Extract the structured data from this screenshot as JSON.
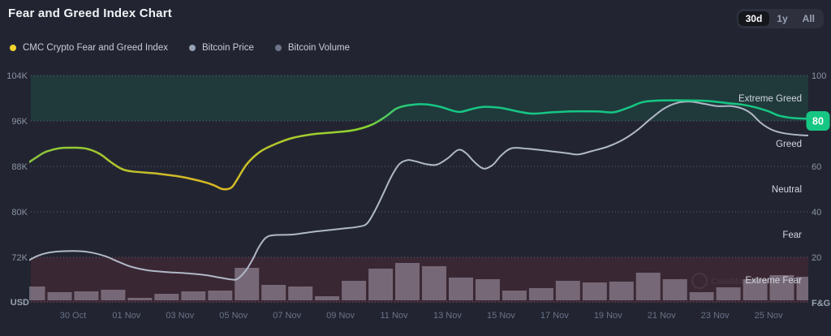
{
  "header": {
    "title": "Fear and Greed Index Chart",
    "range_buttons": [
      {
        "label": "30d",
        "active": true
      },
      {
        "label": "1y",
        "active": false
      },
      {
        "label": "All",
        "active": false
      }
    ]
  },
  "legend": [
    {
      "label": "CMC Crypto Fear and Greed Index",
      "color": "#f3d42f"
    },
    {
      "label": "Bitcoin Price",
      "color": "#98a1b3"
    },
    {
      "label": "Bitcoin Volume",
      "color": "#6e7588"
    }
  ],
  "watermark": "CoinMarketCap",
  "chart_data": {
    "type": "line",
    "title": "Fear and Greed Index Chart",
    "x_axis": {
      "tick_labels": [
        "30 Oct",
        "01 Nov",
        "03 Nov",
        "05 Nov",
        "07 Nov",
        "09 Nov",
        "11 Nov",
        "13 Nov",
        "15 Nov",
        "17 Nov",
        "19 Nov",
        "21 Nov",
        "23 Nov",
        "25 Nov"
      ],
      "tick_days": [
        2,
        4,
        6,
        8,
        10,
        12,
        14,
        16,
        18,
        20,
        22,
        24,
        26,
        28
      ],
      "day_zero": "28 Oct"
    },
    "left_axis": {
      "labels": [
        "104K",
        "96K",
        "88K",
        "80K",
        "72K"
      ],
      "unit_label": "USD",
      "range_k": [
        64,
        104
      ]
    },
    "right_axis": {
      "labels": [
        "100",
        "80",
        "60",
        "40",
        "20"
      ],
      "unit_label": "F&G",
      "range": [
        0,
        100
      ]
    },
    "zone_labels": [
      {
        "label": "Extreme Greed",
        "range": [
          80,
          100
        ],
        "shaded": true,
        "shade_color": "rgba(22,199,132,0.13)"
      },
      {
        "label": "Greed",
        "range": [
          60,
          80
        ],
        "shaded": false,
        "shade_color": ""
      },
      {
        "label": "Neutral",
        "range": [
          40,
          60
        ],
        "shaded": false,
        "shade_color": ""
      },
      {
        "label": "Fear",
        "range": [
          20,
          40
        ],
        "shaded": false,
        "shade_color": ""
      },
      {
        "label": "Extreme Fear",
        "range": [
          0,
          20
        ],
        "shaded": true,
        "shade_color": "rgba(234,57,67,0.12)"
      }
    ],
    "current_value_badge": {
      "value": "80",
      "color": "#16c784"
    },
    "colors": {
      "btc_line": "#b1b8c7",
      "volume_bar": "rgba(203,195,212,0.42)",
      "fg_gradient": [
        {
          "offset": 0.0,
          "color": "#8cc63f"
        },
        {
          "offset": 0.065,
          "color": "#97cb33"
        },
        {
          "offset": 0.127,
          "color": "#bfc22d"
        },
        {
          "offset": 0.183,
          "color": "#d2ba28"
        },
        {
          "offset": 0.25,
          "color": "#d8b824"
        },
        {
          "offset": 0.29,
          "color": "#bfc42b"
        },
        {
          "offset": 0.37,
          "color": "#9ece2f"
        },
        {
          "offset": 0.43,
          "color": "#8ad52c"
        },
        {
          "offset": 0.455,
          "color": "#52cc5e"
        },
        {
          "offset": 0.495,
          "color": "#16c784"
        },
        {
          "offset": 1.0,
          "color": "#16c784"
        }
      ]
    },
    "series": [
      {
        "name": "CMC Crypto Fear and Greed Index",
        "type": "line",
        "axis": "fg",
        "points": [
          [
            0.25,
            61
          ],
          [
            0.7,
            64.5
          ],
          [
            1,
            66.5
          ],
          [
            1.5,
            68
          ],
          [
            2,
            68.2
          ],
          [
            2.5,
            67.8
          ],
          [
            3,
            65.5
          ],
          [
            3.4,
            62
          ],
          [
            3.8,
            59
          ],
          [
            4.2,
            57.8
          ],
          [
            5,
            57
          ],
          [
            5.5,
            56.3
          ],
          [
            6,
            55.5
          ],
          [
            6.5,
            54.3
          ],
          [
            7,
            52.8
          ],
          [
            7.3,
            51.5
          ],
          [
            7.6,
            50
          ],
          [
            7.9,
            50.5
          ],
          [
            8.1,
            53.5
          ],
          [
            8.5,
            61
          ],
          [
            9,
            66.5
          ],
          [
            9.6,
            70
          ],
          [
            10.2,
            72.5
          ],
          [
            11,
            74.2
          ],
          [
            12,
            75.2
          ],
          [
            12.6,
            76.2
          ],
          [
            13.2,
            78.5
          ],
          [
            13.7,
            82
          ],
          [
            14.1,
            85.5
          ],
          [
            14.6,
            87
          ],
          [
            15.2,
            87.3
          ],
          [
            15.7,
            86.3
          ],
          [
            16.2,
            84.5
          ],
          [
            16.5,
            84
          ],
          [
            17,
            85.5
          ],
          [
            17.4,
            86.2
          ],
          [
            18,
            85.7
          ],
          [
            18.7,
            84
          ],
          [
            19.2,
            83.2
          ],
          [
            19.8,
            83.7
          ],
          [
            20.6,
            84.2
          ],
          [
            21.6,
            84.2
          ],
          [
            22.2,
            83.8
          ],
          [
            22.8,
            86
          ],
          [
            23.3,
            88.3
          ],
          [
            24,
            89
          ],
          [
            25,
            89
          ],
          [
            25.8,
            88.7
          ],
          [
            26.5,
            87.8
          ],
          [
            27,
            87.2
          ],
          [
            27.5,
            86
          ],
          [
            28,
            84.2
          ],
          [
            28.4,
            82.3
          ],
          [
            28.9,
            81.3
          ],
          [
            29.4,
            81
          ],
          [
            30,
            80.6
          ]
        ]
      },
      {
        "name": "Bitcoin Price",
        "type": "line",
        "axis": "usd_k",
        "points": [
          [
            0.25,
            71.2
          ],
          [
            0.7,
            72.3
          ],
          [
            1.2,
            72.9
          ],
          [
            2,
            73.1
          ],
          [
            2.6,
            72.9
          ],
          [
            3.2,
            72.2
          ],
          [
            3.7,
            71.2
          ],
          [
            4.2,
            70.3
          ],
          [
            4.8,
            69.7
          ],
          [
            5.5,
            69.4
          ],
          [
            6.2,
            69.2
          ],
          [
            6.9,
            68.9
          ],
          [
            7.4,
            68.5
          ],
          [
            7.9,
            68.1
          ],
          [
            8.15,
            68.2
          ],
          [
            8.45,
            69.6
          ],
          [
            8.7,
            71.5
          ],
          [
            8.95,
            73.8
          ],
          [
            9.2,
            75.4
          ],
          [
            9.5,
            75.9
          ],
          [
            10.2,
            76
          ],
          [
            11,
            76.5
          ],
          [
            12,
            77
          ],
          [
            12.7,
            77.4
          ],
          [
            13,
            78
          ],
          [
            13.3,
            80.3
          ],
          [
            13.6,
            83.2
          ],
          [
            13.9,
            86.2
          ],
          [
            14.2,
            88.4
          ],
          [
            14.5,
            89.1
          ],
          [
            14.8,
            88.9
          ],
          [
            15.2,
            88.4
          ],
          [
            15.6,
            88.3
          ],
          [
            16,
            89.4
          ],
          [
            16.4,
            90.9
          ],
          [
            16.7,
            90.3
          ],
          [
            17,
            88.8
          ],
          [
            17.35,
            87.6
          ],
          [
            17.7,
            88.3
          ],
          [
            18,
            89.9
          ],
          [
            18.4,
            91.2
          ],
          [
            19,
            91.1
          ],
          [
            19.8,
            90.7
          ],
          [
            20.5,
            90.3
          ],
          [
            20.9,
            90.1
          ],
          [
            21.4,
            90.7
          ],
          [
            22,
            91.5
          ],
          [
            22.6,
            92.8
          ],
          [
            23.1,
            94.4
          ],
          [
            23.6,
            96.4
          ],
          [
            24.1,
            98.2
          ],
          [
            24.6,
            99.2
          ],
          [
            25.1,
            99.4
          ],
          [
            25.6,
            99
          ],
          [
            26.1,
            98.6
          ],
          [
            26.6,
            98.6
          ],
          [
            27,
            98.2
          ],
          [
            27.35,
            97.3
          ],
          [
            27.7,
            95.7
          ],
          [
            28.1,
            94.5
          ],
          [
            28.5,
            93.9
          ],
          [
            29.2,
            93.5
          ],
          [
            30,
            93.4
          ]
        ]
      },
      {
        "name": "Bitcoin Volume",
        "type": "bar",
        "axis": "relative_units",
        "start_day": 0,
        "values": [
          17,
          10,
          11,
          13,
          3,
          8,
          11,
          12,
          40,
          19,
          17,
          5,
          24,
          39,
          46,
          42,
          28,
          26,
          12,
          15,
          24,
          22,
          23,
          34,
          26,
          10,
          16,
          26,
          31,
          29
        ]
      }
    ]
  }
}
